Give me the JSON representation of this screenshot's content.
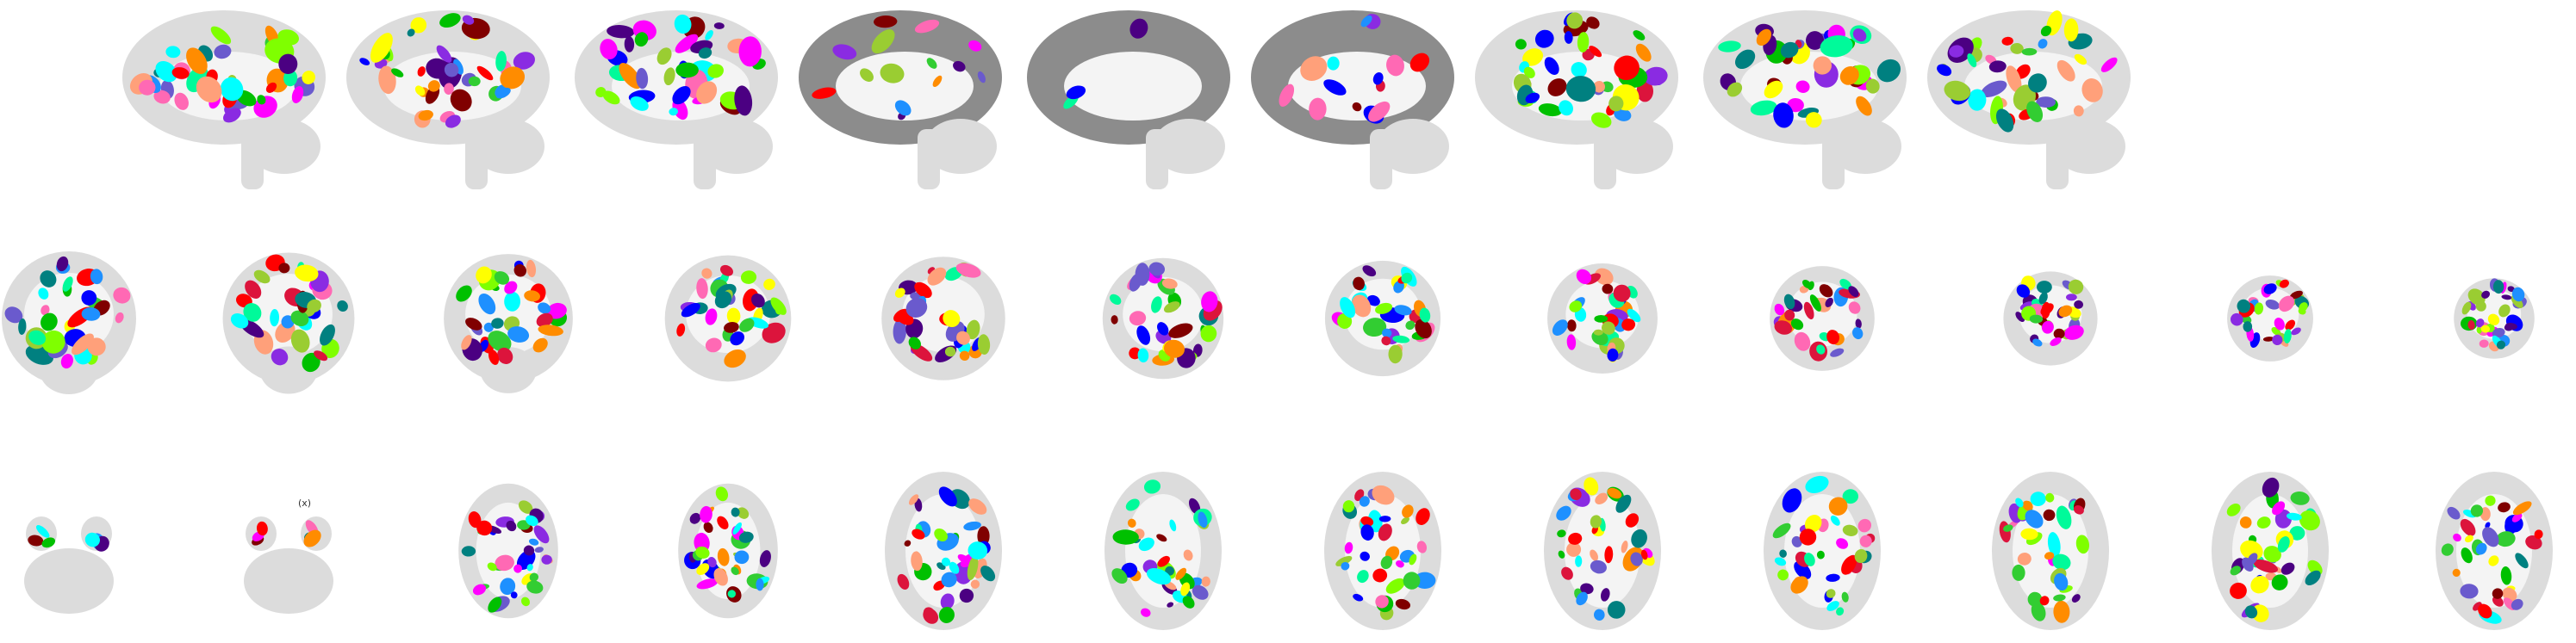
{
  "figure": {
    "rows": [
      {
        "name": "sagittal",
        "count": 9
      },
      {
        "name": "coronal",
        "count": 12
      },
      {
        "name": "axial",
        "count": 12
      }
    ],
    "colors": {
      "tissue": "#dcdcdc",
      "white_matter": "#f4f4f4",
      "gray_dark": "#8c8c8c",
      "parcel_palette": [
        "#ff0000",
        "#00c000",
        "#0000ff",
        "#ffff00",
        "#ff00ff",
        "#00ffff",
        "#ff8c00",
        "#8a2be2",
        "#7fff00",
        "#ff69b4",
        "#008080",
        "#800000",
        "#1e90ff",
        "#32cd32",
        "#ffa07a",
        "#4b0082",
        "#9acd32",
        "#dc143c",
        "#00fa9a",
        "#6a5acd"
      ]
    },
    "labels": {
      "small_mark": "(x)"
    }
  }
}
